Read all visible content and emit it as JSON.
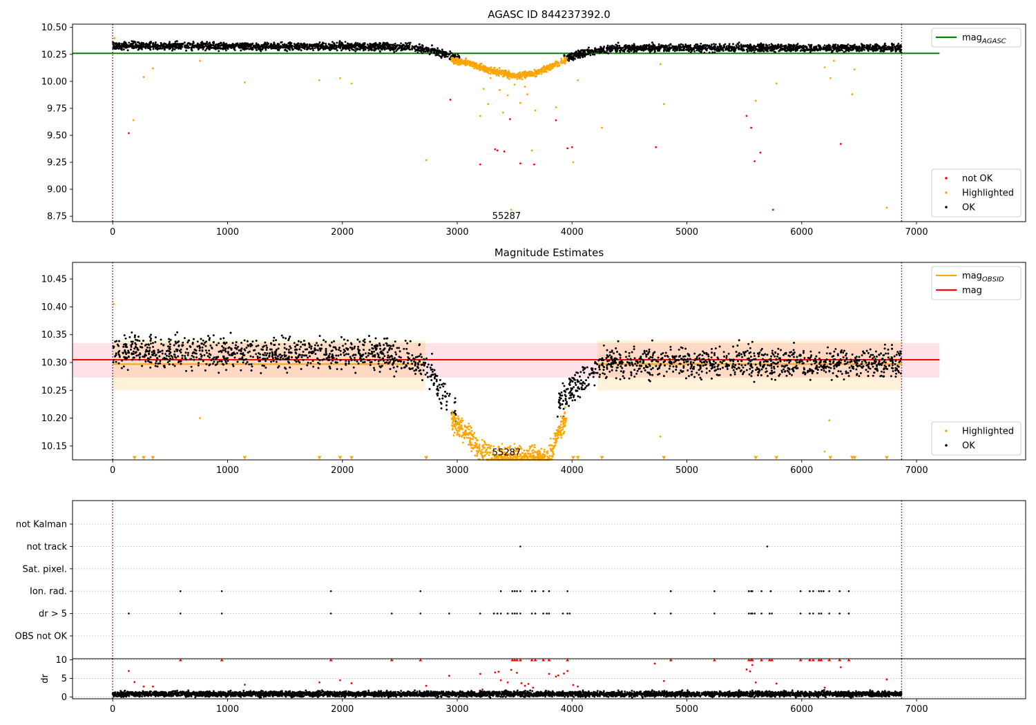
{
  "chart_data": [
    {
      "type": "scatter",
      "title": "AGASC ID 844237392.0",
      "xlabel": "",
      "ylabel": "",
      "xlim": [
        -350,
        7950
      ],
      "ylim": [
        8.7,
        10.53
      ],
      "x_ticks": [
        0,
        1000,
        2000,
        3000,
        4000,
        5000,
        6000,
        7000
      ],
      "y_ticks": [
        8.75,
        9.0,
        9.25,
        9.5,
        9.75,
        10.0,
        10.25,
        10.5
      ],
      "y_tick_labels": [
        "8.75",
        "9.00",
        "9.25",
        "9.50",
        "9.75",
        "10.00",
        "10.25",
        "10.50"
      ],
      "vlines": [
        {
          "x": 0,
          "color": "#800080",
          "style": "dotted"
        },
        {
          "x": 6870,
          "color": "#800080",
          "style": "dotted"
        }
      ],
      "hlines": [
        {
          "y": 10.26,
          "x_range": [
            -350,
            7200
          ],
          "color": "#008000",
          "label": "mag",
          "label_sub": "AGASC"
        }
      ],
      "annotations": [
        {
          "x": 3430,
          "y": 8.75,
          "text": "55287"
        }
      ],
      "legend_top": {
        "location": "top-right",
        "entries": [
          {
            "label": "mag",
            "sub": "AGASC",
            "color": "#008000",
            "marker": "line"
          }
        ]
      },
      "legend_bottom": {
        "location": "bottom-right",
        "entries": [
          {
            "label": "not OK",
            "color": "#ff0000",
            "marker": "dot"
          },
          {
            "label": "Highlighted",
            "color": "#ffa500",
            "marker": "dot"
          },
          {
            "label": "OK",
            "color": "#000000",
            "marker": "dot"
          }
        ]
      },
      "series": [
        {
          "name": "OK",
          "color": "#000000",
          "profile": [
            [
              0,
              10.33
            ],
            [
              2600,
              10.32
            ],
            [
              2800,
              10.28
            ],
            [
              2980,
              10.22
            ],
            [
              3200,
              10.2
            ],
            [
              3500,
              10.19
            ],
            [
              3800,
              10.2
            ],
            [
              3980,
              10.22
            ],
            [
              4150,
              10.28
            ],
            [
              4400,
              10.31
            ],
            [
              6870,
              10.31
            ]
          ],
          "jitter": 0.035,
          "exclude_range": [
            3020,
            3930
          ]
        },
        {
          "name": "Highlighted",
          "color": "#ffa500",
          "profile": [
            [
              2900,
              10.2
            ],
            [
              3100,
              10.17
            ],
            [
              3300,
              10.1
            ],
            [
              3500,
              10.05
            ],
            [
              3700,
              10.08
            ],
            [
              3850,
              10.15
            ],
            [
              3950,
              10.2
            ]
          ],
          "jitter": 0.03,
          "range": [
            2950,
            3950
          ]
        },
        {
          "name": "Highlighted (outliers)",
          "color": "#ffa500",
          "x": [
            15,
            180,
            270,
            350,
            760,
            1150,
            1800,
            1980,
            2080,
            2730,
            3200,
            3230,
            3270,
            3290,
            3370,
            3400,
            3440,
            3470,
            3500,
            3550,
            3590,
            3610,
            3650,
            3680,
            3860,
            4010,
            4050,
            4260,
            4770,
            4800,
            5600,
            5780,
            6200,
            6250,
            6280,
            6440,
            6460,
            6740
          ],
          "y": [
            10.4,
            9.64,
            10.04,
            10.12,
            10.19,
            9.99,
            10.01,
            10.03,
            9.98,
            9.27,
            9.68,
            9.93,
            9.79,
            10.03,
            9.92,
            9.71,
            9.87,
            8.81,
            9.97,
            9.8,
            9.95,
            9.88,
            9.36,
            9.73,
            9.76,
            9.25,
            10.01,
            9.57,
            10.16,
            9.79,
            9.82,
            9.98,
            10.13,
            10.03,
            10.19,
            9.88,
            10.11,
            8.83
          ]
        },
        {
          "name": "not OK",
          "color": "#ff0000",
          "x": [
            140,
            2940,
            3200,
            3330,
            3350,
            3410,
            3460,
            3550,
            3670,
            3860,
            3960,
            4000,
            4730,
            5520,
            5560,
            5590,
            5640,
            5750,
            6340
          ],
          "y": [
            9.52,
            9.83,
            9.23,
            9.37,
            9.36,
            9.35,
            9.65,
            9.24,
            9.23,
            9.64,
            9.38,
            9.39,
            9.39,
            9.68,
            9.57,
            9.26,
            9.34,
            8.81,
            9.42
          ]
        }
      ]
    },
    {
      "type": "scatter",
      "title": "Magnitude Estimates",
      "xlabel": "",
      "ylabel": "",
      "xlim": [
        -350,
        7950
      ],
      "ylim": [
        10.125,
        10.48
      ],
      "x_ticks": [
        0,
        1000,
        2000,
        3000,
        4000,
        5000,
        6000,
        7000
      ],
      "y_ticks": [
        10.15,
        10.2,
        10.25,
        10.3,
        10.35,
        10.4,
        10.45
      ],
      "y_tick_labels": [
        "10.15",
        "10.20",
        "10.25",
        "10.30",
        "10.35",
        "10.40",
        "10.45"
      ],
      "vlines": [
        {
          "x": 0,
          "color": "#800080",
          "style": "dotted"
        },
        {
          "x": 6870,
          "color": "#800080",
          "style": "dotted"
        }
      ],
      "bands": [
        {
          "name": "mag range",
          "color": "#ffb3c0",
          "opacity": 0.38,
          "y_range": [
            10.273,
            10.335
          ],
          "x_range": [
            -350,
            7200
          ]
        },
        {
          "name": "mag_OBSID range (early)",
          "color": "#ffa500",
          "opacity": 0.15,
          "y_range": [
            10.25,
            10.34
          ],
          "x_range": [
            0,
            2720
          ]
        },
        {
          "name": "mag_OBSID range (late)",
          "color": "#ffa500",
          "opacity": 0.15,
          "y_range": [
            10.25,
            10.34
          ],
          "x_range": [
            4220,
            6870
          ]
        }
      ],
      "hlines": [
        {
          "y": 10.297,
          "x_range": [
            0,
            2720
          ],
          "color": "#ffa500",
          "label": "mag",
          "label_sub": "OBSID"
        },
        {
          "y": 10.297,
          "x_range": [
            4220,
            6870
          ],
          "color": "#ffa500",
          "label": "mag",
          "label_sub": "OBSID"
        },
        {
          "y": 10.305,
          "x_range": [
            -350,
            7200
          ],
          "color": "#ff0000",
          "label": "mag"
        }
      ],
      "annotations": [
        {
          "x": 3430,
          "y": 10.138,
          "text": "55287"
        }
      ],
      "legend_top": {
        "location": "top-right",
        "entries": [
          {
            "label": "mag",
            "sub": "OBSID",
            "color": "#ffa500",
            "marker": "line"
          },
          {
            "label": "mag",
            "color": "#ff0000",
            "marker": "line"
          }
        ]
      },
      "legend_bottom": {
        "location": "bottom-right",
        "entries": [
          {
            "label": "Highlighted",
            "color": "#ffa500",
            "marker": "dot"
          },
          {
            "label": "OK",
            "color": "#000000",
            "marker": "dot"
          }
        ]
      },
      "series": [
        {
          "name": "OK",
          "color": "#000000",
          "profile": [
            [
              0,
              10.32
            ],
            [
              2500,
              10.315
            ],
            [
              2700,
              10.3
            ],
            [
              2900,
              10.24
            ],
            [
              2980,
              10.215
            ],
            [
              3860,
              10.215
            ],
            [
              3950,
              10.24
            ],
            [
              4100,
              10.27
            ],
            [
              4250,
              10.3
            ],
            [
              6870,
              10.3
            ]
          ],
          "jitter": 0.028,
          "exclude_range": [
            2990,
            3870
          ]
        },
        {
          "name": "Highlighted",
          "color": "#ffa500",
          "profile": [
            [
              2950,
              10.2
            ],
            [
              3100,
              10.17
            ],
            [
              3200,
              10.14
            ],
            [
              3300,
              10.13
            ],
            [
              3800,
              10.13
            ],
            [
              3850,
              10.16
            ],
            [
              3950,
              10.2
            ]
          ],
          "jitter": 0.02,
          "range": [
            2950,
            3950
          ]
        },
        {
          "name": "Highlighted (off-scale)",
          "color": "#ffa500",
          "marker": "triangle-down",
          "x": [
            190,
            270,
            350,
            1150,
            1800,
            1980,
            2080,
            2730,
            4010,
            4050,
            4260,
            4800,
            5600,
            5780,
            6250,
            6440,
            6460,
            6740
          ],
          "y": [
            10.13,
            10.13,
            10.13,
            10.13,
            10.13,
            10.13,
            10.13,
            10.13,
            10.13,
            10.13,
            10.13,
            10.13,
            10.13,
            10.13,
            10.13,
            10.13,
            10.13,
            10.13
          ]
        },
        {
          "name": "Highlighted (isolated)",
          "color": "#ffa500",
          "x": [
            10,
            760,
            4770,
            6200,
            6240
          ],
          "y": [
            10.405,
            10.2,
            10.167,
            10.14,
            10.196
          ]
        }
      ]
    },
    {
      "type": "scatter",
      "title": "",
      "xlabel": "",
      "ylabel": "",
      "xlim": [
        -350,
        7950
      ],
      "categories": [
        "not Kalman",
        "not track",
        "Sat. pixel.",
        "Ion. rad.",
        "dr > 5",
        "OBS not OK"
      ],
      "vlines": [
        {
          "x": 0,
          "color": "#800080",
          "style": "dotted"
        },
        {
          "x": 6870,
          "color": "#800080",
          "style": "dotted"
        }
      ],
      "flags": [
        {
          "category": "not track",
          "x": [
            3550,
            5700
          ]
        },
        {
          "category": "Ion. rad.",
          "x": [
            590,
            950,
            1900,
            2680,
            3380,
            3480,
            3500,
            3520,
            3550,
            3650,
            3680,
            3750,
            3800,
            3960,
            4860,
            5240,
            5540,
            5560,
            5570,
            5650,
            5730,
            5990,
            6070,
            6100,
            6150,
            6170,
            6190,
            6240,
            6330,
            6410
          ]
        },
        {
          "category": "dr > 5",
          "x": [
            140,
            590,
            950,
            1900,
            2430,
            2680,
            2930,
            3200,
            3320,
            3350,
            3380,
            3440,
            3480,
            3500,
            3520,
            3550,
            3650,
            3680,
            3750,
            3780,
            3800,
            3920,
            3960,
            3980,
            4720,
            4860,
            5240,
            5540,
            5560,
            5570,
            5590,
            5650,
            5720,
            5740,
            5990,
            6070,
            6100,
            6150,
            6170,
            6240,
            6330,
            6410
          ]
        }
      ]
    },
    {
      "type": "scatter",
      "title": "",
      "xlabel": "",
      "ylabel": "dr",
      "xlim": [
        -350,
        7950
      ],
      "ylim": [
        -0.5,
        10.3
      ],
      "x_ticks": [
        0,
        1000,
        2000,
        3000,
        4000,
        5000,
        6000,
        7000
      ],
      "y_ticks": [
        0,
        5,
        10
      ],
      "y_tick_labels": [
        "0",
        "5",
        "10"
      ],
      "vlines": [
        {
          "x": 0,
          "color": "#800080",
          "style": "dotted"
        },
        {
          "x": 6870,
          "color": "#800080",
          "style": "dotted"
        }
      ],
      "series": [
        {
          "name": "OK",
          "color": "#000000",
          "profile": [
            [
              0,
              0.8
            ],
            [
              6870,
              0.8
            ]
          ],
          "jitter": 0.7
        },
        {
          "name": "dr (red points)",
          "color": "#ff0000",
          "x": [
            140,
            190,
            270,
            350,
            1150,
            1800,
            1980,
            2080,
            2730,
            2930,
            3200,
            3220,
            3330,
            3360,
            3380,
            3440,
            3470,
            3520,
            3560,
            3590,
            3620,
            3660,
            3800,
            3860,
            3880,
            3930,
            3960,
            4010,
            4050,
            4720,
            4800,
            5520,
            5550,
            5570,
            5600,
            5780,
            6200,
            6340,
            6740
          ],
          "y": [
            7.0,
            4.0,
            2.8,
            2.8,
            3.3,
            3.9,
            4.5,
            3.7,
            3.0,
            5.7,
            6.2,
            2.0,
            6.6,
            6.8,
            4.5,
            3.9,
            7.3,
            6.5,
            3.7,
            3.0,
            3.5,
            2.5,
            6.2,
            5.5,
            5.8,
            6.3,
            7.0,
            3.2,
            2.8,
            9.0,
            4.3,
            7.4,
            6.9,
            8.6,
            3.9,
            3.6,
            2.5,
            8.0,
            4.7
          ]
        },
        {
          "name": "dr (red, capped)",
          "color": "#ff0000",
          "marker": "triangle-up",
          "x": [
            590,
            950,
            1900,
            2430,
            2680,
            3480,
            3500,
            3520,
            3550,
            3650,
            3680,
            3750,
            3800,
            3960,
            4860,
            5240,
            5540,
            5560,
            5570,
            5650,
            5720,
            5740,
            5990,
            6070,
            6100,
            6150,
            6170,
            6240,
            6330,
            6410
          ],
          "y": [
            10,
            10,
            10,
            10,
            10,
            10,
            10,
            10,
            10,
            10,
            10,
            10,
            10,
            10,
            10,
            10,
            10,
            10,
            10,
            10,
            10,
            10,
            10,
            10,
            10,
            10,
            10,
            10,
            10,
            10
          ]
        }
      ]
    }
  ]
}
